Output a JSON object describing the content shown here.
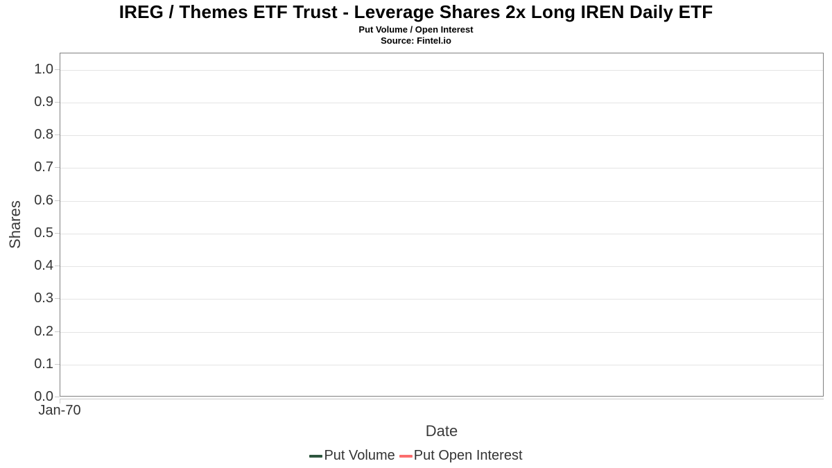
{
  "header": {
    "title": "IREG / Themes ETF Trust - Leverage Shares 2x Long IREN Daily ETF",
    "subtitle": "Put Volume / Open Interest",
    "source": "Source: Fintel.io"
  },
  "chart_data": {
    "type": "line",
    "title": "IREG / Themes ETF Trust - Leverage Shares 2x Long IREN Daily ETF",
    "subtitle": "Put Volume / Open Interest",
    "source_note": "Source: Fintel.io",
    "xlabel": "Date",
    "ylabel": "Shares",
    "ylim": [
      0.0,
      1.05
    ],
    "yticks": [
      0.0,
      0.1,
      0.2,
      0.3,
      0.4,
      0.5,
      0.6,
      0.7,
      0.8,
      0.9,
      1.0
    ],
    "ytick_labels": [
      "0.0",
      "0.1",
      "0.2",
      "0.3",
      "0.4",
      "0.5",
      "0.6",
      "0.7",
      "0.8",
      "0.9",
      "1.0"
    ],
    "xtick_labels": [
      "Jan-70"
    ],
    "grid": true,
    "legend_position": "bottom",
    "series": [
      {
        "name": "Put Volume",
        "color": "#2e563e",
        "x": [],
        "values": []
      },
      {
        "name": "Put Open Interest",
        "color": "#fb6e6e",
        "x": [],
        "values": []
      }
    ]
  },
  "colors": {
    "plot_border": "#808080",
    "gridline": "#e4e4e4",
    "tick": "#c9c9c9",
    "axis_line": "#c9c9c9",
    "axis_text": "#333333",
    "title_text": "#000000"
  }
}
